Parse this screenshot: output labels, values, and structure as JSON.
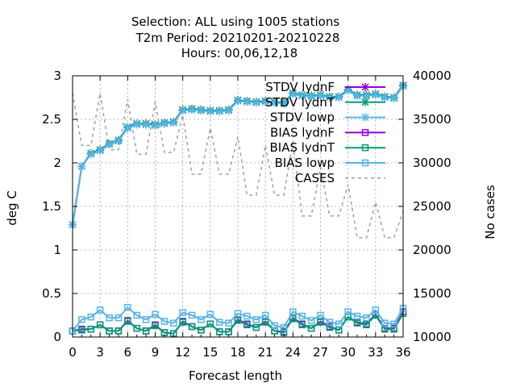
{
  "chart_data": {
    "type": "line",
    "title_lines": [
      "Selection: ALL using  1005 stations",
      "T2m   Period: 20210201-20210228",
      "Hours:  00,06,12,18"
    ],
    "xlabel": "Forecast length",
    "ylabel": "deg C",
    "y2label": "No cases",
    "xlim": [
      0,
      36
    ],
    "ylim": [
      0,
      3
    ],
    "y2lim": [
      10000,
      40000
    ],
    "xticks": [
      0,
      3,
      6,
      9,
      12,
      15,
      18,
      21,
      24,
      27,
      30,
      33,
      36
    ],
    "yticks": [
      0,
      0.5,
      1,
      1.5,
      2,
      2.5,
      3
    ],
    "yticklabels": [
      "0",
      "0.5",
      "1",
      "1.5",
      "2",
      "2.5",
      "3"
    ],
    "y2ticks": [
      10000,
      15000,
      20000,
      25000,
      30000,
      35000,
      40000
    ],
    "grid": true,
    "legend_position": "top-right",
    "x": [
      0,
      1,
      2,
      3,
      4,
      5,
      6,
      7,
      8,
      9,
      10,
      11,
      12,
      13,
      14,
      15,
      16,
      17,
      18,
      19,
      20,
      21,
      22,
      23,
      24,
      25,
      26,
      27,
      28,
      29,
      30,
      31,
      32,
      33,
      34,
      35,
      36
    ],
    "series": [
      {
        "name": "STDV lydnF",
        "color": "#9400d3",
        "marker": "x",
        "axis": "y1",
        "values": [
          1.29,
          1.96,
          2.11,
          2.15,
          2.22,
          2.26,
          2.41,
          2.45,
          2.45,
          2.44,
          2.46,
          2.47,
          2.61,
          2.62,
          2.61,
          2.6,
          2.6,
          2.61,
          2.72,
          2.71,
          2.7,
          2.71,
          2.7,
          2.69,
          2.8,
          2.78,
          2.77,
          2.78,
          2.76,
          2.76,
          2.84,
          2.78,
          2.78,
          2.79,
          2.76,
          2.75,
          2.89
        ]
      },
      {
        "name": "STDV lydnT",
        "color": "#009e73",
        "marker": "x",
        "axis": "y1",
        "values": [
          1.29,
          1.96,
          2.11,
          2.15,
          2.22,
          2.26,
          2.41,
          2.45,
          2.45,
          2.44,
          2.46,
          2.47,
          2.61,
          2.62,
          2.61,
          2.6,
          2.6,
          2.61,
          2.72,
          2.71,
          2.7,
          2.71,
          2.7,
          2.69,
          2.8,
          2.78,
          2.77,
          2.78,
          2.76,
          2.76,
          2.84,
          2.78,
          2.78,
          2.79,
          2.76,
          2.75,
          2.89
        ]
      },
      {
        "name": "STDV lowp",
        "color": "#56b4e9",
        "marker": "x",
        "axis": "y1",
        "values": [
          1.29,
          1.96,
          2.1,
          2.14,
          2.21,
          2.25,
          2.4,
          2.44,
          2.44,
          2.43,
          2.45,
          2.46,
          2.6,
          2.61,
          2.6,
          2.59,
          2.59,
          2.6,
          2.71,
          2.7,
          2.69,
          2.7,
          2.69,
          2.68,
          2.79,
          2.77,
          2.76,
          2.77,
          2.75,
          2.75,
          2.83,
          2.77,
          2.77,
          2.78,
          2.75,
          2.74,
          2.88
        ]
      },
      {
        "name": "BIAS lydnF",
        "color": "#9400d3",
        "marker": "s",
        "axis": "y1",
        "values": [
          0.07,
          0.09,
          0.09,
          0.14,
          0.07,
          0.07,
          0.19,
          0.1,
          0.07,
          0.14,
          0.05,
          0.04,
          0.18,
          0.12,
          0.08,
          0.15,
          0.06,
          0.06,
          0.2,
          0.15,
          0.11,
          0.18,
          0.07,
          0.06,
          0.22,
          0.15,
          0.1,
          0.18,
          0.12,
          0.08,
          0.23,
          0.17,
          0.15,
          0.26,
          0.1,
          0.1,
          0.29
        ]
      },
      {
        "name": "BIAS lydnT",
        "color": "#009e73",
        "marker": "s",
        "axis": "y1",
        "values": [
          0.07,
          0.08,
          0.09,
          0.14,
          0.07,
          0.07,
          0.18,
          0.1,
          0.07,
          0.13,
          0.05,
          0.04,
          0.17,
          0.12,
          0.08,
          0.15,
          0.06,
          0.06,
          0.19,
          0.14,
          0.11,
          0.17,
          0.07,
          0.05,
          0.21,
          0.14,
          0.1,
          0.17,
          0.11,
          0.08,
          0.23,
          0.16,
          0.14,
          0.25,
          0.09,
          0.09,
          0.27
        ]
      },
      {
        "name": "BIAS lowp",
        "color": "#56b4e9",
        "marker": "s",
        "axis": "y1",
        "values": [
          0.07,
          0.2,
          0.23,
          0.31,
          0.22,
          0.22,
          0.34,
          0.25,
          0.2,
          0.26,
          0.18,
          0.16,
          0.28,
          0.25,
          0.2,
          0.26,
          0.17,
          0.16,
          0.27,
          0.24,
          0.2,
          0.25,
          0.13,
          0.11,
          0.29,
          0.24,
          0.19,
          0.25,
          0.17,
          0.15,
          0.29,
          0.24,
          0.22,
          0.31,
          0.16,
          0.15,
          0.33
        ]
      },
      {
        "name": "CASES",
        "color": "#a0a0a0",
        "marker": "none",
        "dashed": true,
        "axis": "y2",
        "values": [
          38000,
          32000,
          32000,
          38000,
          31500,
          31500,
          37300,
          31000,
          31000,
          37000,
          31200,
          31200,
          35500,
          28700,
          28700,
          34000,
          28700,
          28700,
          33000,
          26300,
          26300,
          32000,
          26300,
          26300,
          32400,
          23900,
          23900,
          29500,
          23900,
          23900,
          27500,
          21400,
          21400,
          25500,
          21400,
          21400,
          24400
        ]
      }
    ]
  }
}
